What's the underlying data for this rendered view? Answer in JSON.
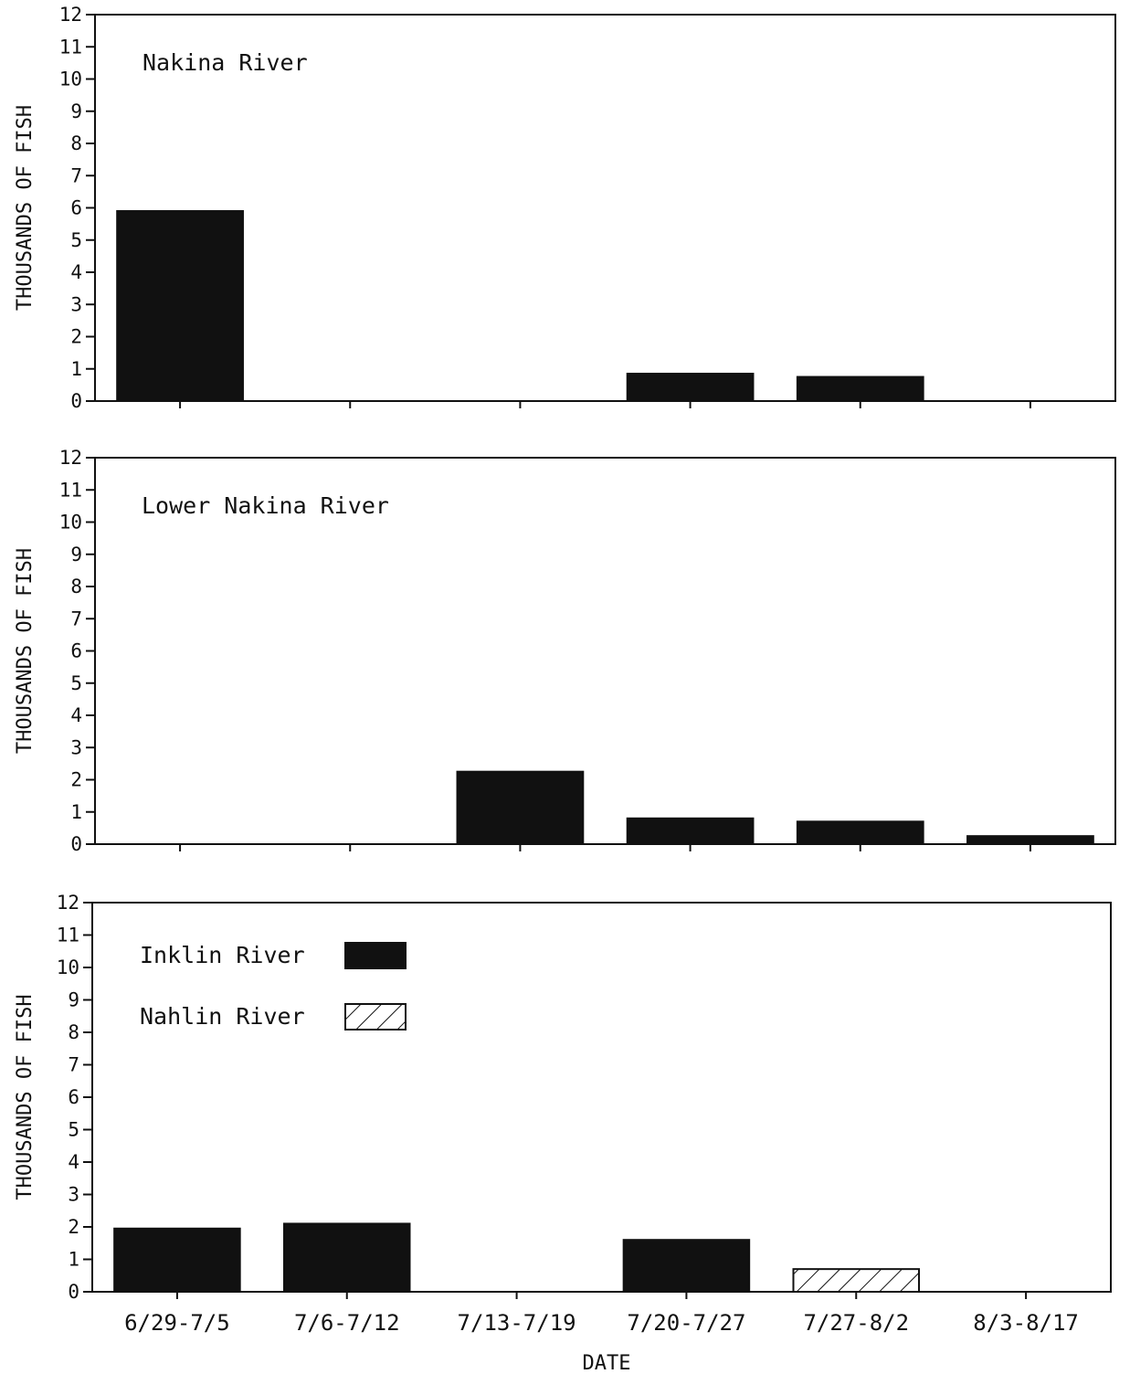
{
  "chart_data": [
    {
      "type": "bar",
      "title": "Nakina River",
      "ylabel": "THOUSANDS OF FISH",
      "xlabel": "",
      "ylim": [
        0,
        12
      ],
      "yticks": [
        0,
        1,
        2,
        3,
        4,
        5,
        6,
        7,
        8,
        9,
        10,
        11,
        12
      ],
      "categories": [
        "6/29-7/5",
        "7/6-7/12",
        "7/13-7/19",
        "7/20-7/27",
        "7/27-8/2",
        "8/3-8/17"
      ],
      "series": [
        {
          "values": [
            5.9,
            0,
            0,
            0.85,
            0.75,
            0
          ],
          "fill": "solid"
        }
      ],
      "grid": false,
      "colors": {
        "bar": "#111111",
        "axis": "#111111"
      }
    },
    {
      "type": "bar",
      "title": "Lower Nakina River",
      "ylabel": "THOUSANDS OF FISH",
      "xlabel": "",
      "ylim": [
        0,
        12
      ],
      "yticks": [
        0,
        1,
        2,
        3,
        4,
        5,
        6,
        7,
        8,
        9,
        10,
        11,
        12
      ],
      "categories": [
        "6/29-7/5",
        "7/6-7/12",
        "7/13-7/19",
        "7/20-7/27",
        "7/27-8/2",
        "8/3-8/17"
      ],
      "series": [
        {
          "values": [
            0,
            0,
            2.25,
            0.8,
            0.7,
            0.25
          ],
          "fill": "solid"
        }
      ],
      "grid": false,
      "colors": {
        "bar": "#111111",
        "axis": "#111111"
      }
    },
    {
      "type": "bar",
      "title": "",
      "ylabel": "THOUSANDS OF FISH",
      "xlabel": "DATE",
      "ylim": [
        0,
        12
      ],
      "yticks": [
        0,
        1,
        2,
        3,
        4,
        5,
        6,
        7,
        8,
        9,
        10,
        11,
        12
      ],
      "categories": [
        "6/29-7/5",
        "7/6-7/12",
        "7/13-7/19",
        "7/20-7/27",
        "7/27-8/2",
        "8/3-8/17"
      ],
      "series": [
        {
          "name": "Inklin River",
          "values": [
            1.95,
            2.1,
            0,
            1.6,
            0,
            0
          ],
          "fill": "solid"
        },
        {
          "name": "Nahlin River",
          "values": [
            0,
            0,
            0,
            0,
            0.7,
            0
          ],
          "fill": "hatch"
        }
      ],
      "legend": "top-left",
      "grid": false,
      "colors": {
        "bar": "#111111",
        "axis": "#111111"
      }
    }
  ]
}
